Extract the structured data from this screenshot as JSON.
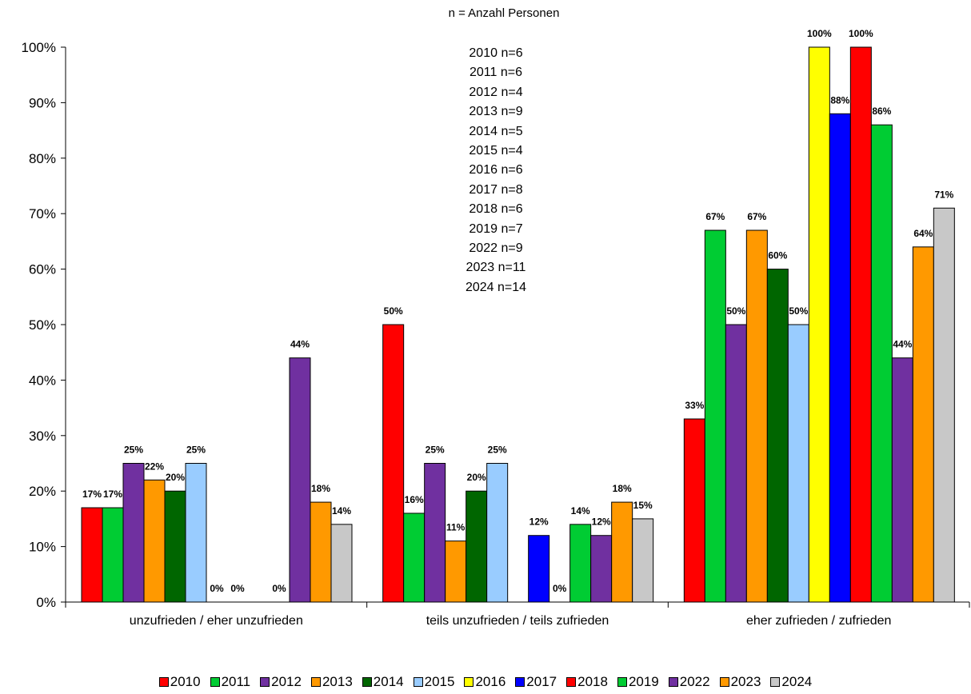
{
  "chart_data": {
    "type": "bar",
    "subtitle": "n = Anzahl Personen",
    "n_info": [
      "2010 n=6",
      "2011 n=6",
      "2012 n=4",
      "2013 n=9",
      "2014 n=5",
      "2015 n=4",
      "2016 n=6",
      "2017 n=8",
      "2018 n=6",
      "2019 n=7",
      "2022 n=9",
      "2023 n=11",
      "2024 n=14"
    ],
    "categories": [
      "unzufrieden / eher unzufrieden",
      "teils unzufrieden / teils zufrieden",
      "eher zufrieden / zufrieden"
    ],
    "ylim": [
      0,
      100
    ],
    "yticks": [
      "0%",
      "10%",
      "20%",
      "30%",
      "40%",
      "50%",
      "60%",
      "70%",
      "80%",
      "90%",
      "100%"
    ],
    "legend_position": "bottom",
    "series": [
      {
        "name": "2010",
        "color": "#ff0000",
        "values": [
          17,
          50,
          33
        ],
        "labels": [
          "17%",
          "50%",
          "33%"
        ]
      },
      {
        "name": "2011",
        "color": "#00cc33",
        "values": [
          17,
          16,
          67
        ],
        "labels": [
          "17%",
          "16%",
          "67%"
        ]
      },
      {
        "name": "2012",
        "color": "#7030a0",
        "values": [
          25,
          25,
          50
        ],
        "labels": [
          "25%",
          "25%",
          "50%"
        ]
      },
      {
        "name": "2013",
        "color": "#ff9900",
        "values": [
          22,
          11,
          67
        ],
        "labels": [
          "22%",
          "11%",
          "67%"
        ]
      },
      {
        "name": "2014",
        "color": "#006600",
        "values": [
          20,
          20,
          60
        ],
        "labels": [
          "20%",
          "20%",
          "60%"
        ]
      },
      {
        "name": "2015",
        "color": "#99ccff",
        "values": [
          25,
          25,
          50
        ],
        "labels": [
          "25%",
          "25%",
          "50%"
        ]
      },
      {
        "name": "2016",
        "color": "#ffff00",
        "values": [
          0,
          0,
          100
        ],
        "labels": [
          "0%",
          "",
          "100%"
        ]
      },
      {
        "name": "2017",
        "color": "#0000ff",
        "values": [
          0,
          12,
          88
        ],
        "labels": [
          "0%",
          "12%",
          "88%"
        ]
      },
      {
        "name": "2018",
        "color": "#ff0000",
        "values": [
          0,
          0,
          100
        ],
        "labels": [
          "",
          "0%",
          "100%"
        ]
      },
      {
        "name": "2019",
        "color": "#00cc33",
        "values": [
          0,
          14,
          86
        ],
        "labels": [
          "0%",
          "14%",
          "86%"
        ]
      },
      {
        "name": "2022",
        "color": "#7030a0",
        "values": [
          44,
          12,
          44
        ],
        "labels": [
          "44%",
          "12%",
          "44%"
        ]
      },
      {
        "name": "2023",
        "color": "#ff9900",
        "values": [
          18,
          18,
          64
        ],
        "labels": [
          "18%",
          "18%",
          "64%"
        ]
      },
      {
        "name": "2024",
        "color": "#c8c8c8",
        "values": [
          14,
          15,
          71
        ],
        "labels": [
          "14%",
          "15%",
          "71%"
        ]
      }
    ]
  }
}
